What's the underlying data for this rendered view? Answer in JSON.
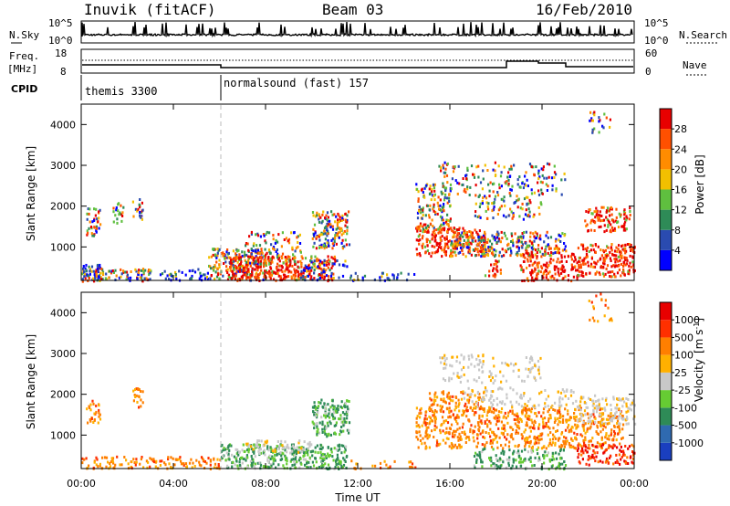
{
  "header": {
    "station": "Inuvik (fitACF)",
    "beam": "Beam 03",
    "date": "16/Feb/2010"
  },
  "top_panels": {
    "nsky_label": "N.Sky",
    "nsky_ticks": [
      "10^5",
      "10^0"
    ],
    "nsearch_label": "N.Search",
    "nsearch_ticks": [
      "10^5",
      "10^0"
    ],
    "freq_label": "Freq.",
    "freq_unit": "[MHz]",
    "freq_ticks": [
      "18",
      "8"
    ],
    "nave_label": "Nave",
    "nave_ticks": [
      "60",
      "0"
    ],
    "cpid_label": "CPID",
    "cpid_segments": [
      {
        "name": "themis 3300",
        "start_hour": 0
      },
      {
        "name": "normalsound (fast) 157",
        "start_hour": 6
      }
    ]
  },
  "chart_data": [
    {
      "type": "heatmap",
      "name": "power",
      "ylabel": "Slant Range [km]",
      "yticks": [
        "1000",
        "2000",
        "3000",
        "4000"
      ],
      "ylim": [
        180,
        4500
      ],
      "xlim": [
        0,
        24
      ],
      "colorbar_label": "Power [dB]",
      "colorbar_ticks": [
        "4",
        "8",
        "12",
        "16",
        "20",
        "24",
        "28"
      ],
      "colorbar_colors": [
        "#0000ff",
        "#2a4bb0",
        "#2e8b57",
        "#5fbf3f",
        "#f2c000",
        "#ff8c00",
        "#ff5000",
        "#e80000"
      ]
    },
    {
      "type": "heatmap",
      "name": "velocity",
      "ylabel": "Slant Range [km]",
      "yticks": [
        "1000",
        "2000",
        "3000",
        "4000"
      ],
      "ylim": [
        180,
        4500
      ],
      "xlim": [
        0,
        24
      ],
      "xlabel": "Time UT",
      "xticks": [
        "00:00",
        "04:00",
        "08:00",
        "12:00",
        "16:00",
        "20:00",
        "00:00"
      ],
      "colorbar_label": "Velocity",
      "colorbar_unit": "[m s",
      "colorbar_unit_exp": "-1",
      "colorbar_unit_close": "]",
      "colorbar_ticks": [
        "1000",
        "500",
        "100",
        "25",
        "-25",
        "-100",
        "-500",
        "-1000"
      ],
      "colorbar_colors": [
        "#1a3fbf",
        "#2f6ab0",
        "#2e8b57",
        "#66cc33",
        "#c8c8c8",
        "#ffb000",
        "#ff7f00",
        "#ff3000",
        "#e80000"
      ]
    }
  ]
}
